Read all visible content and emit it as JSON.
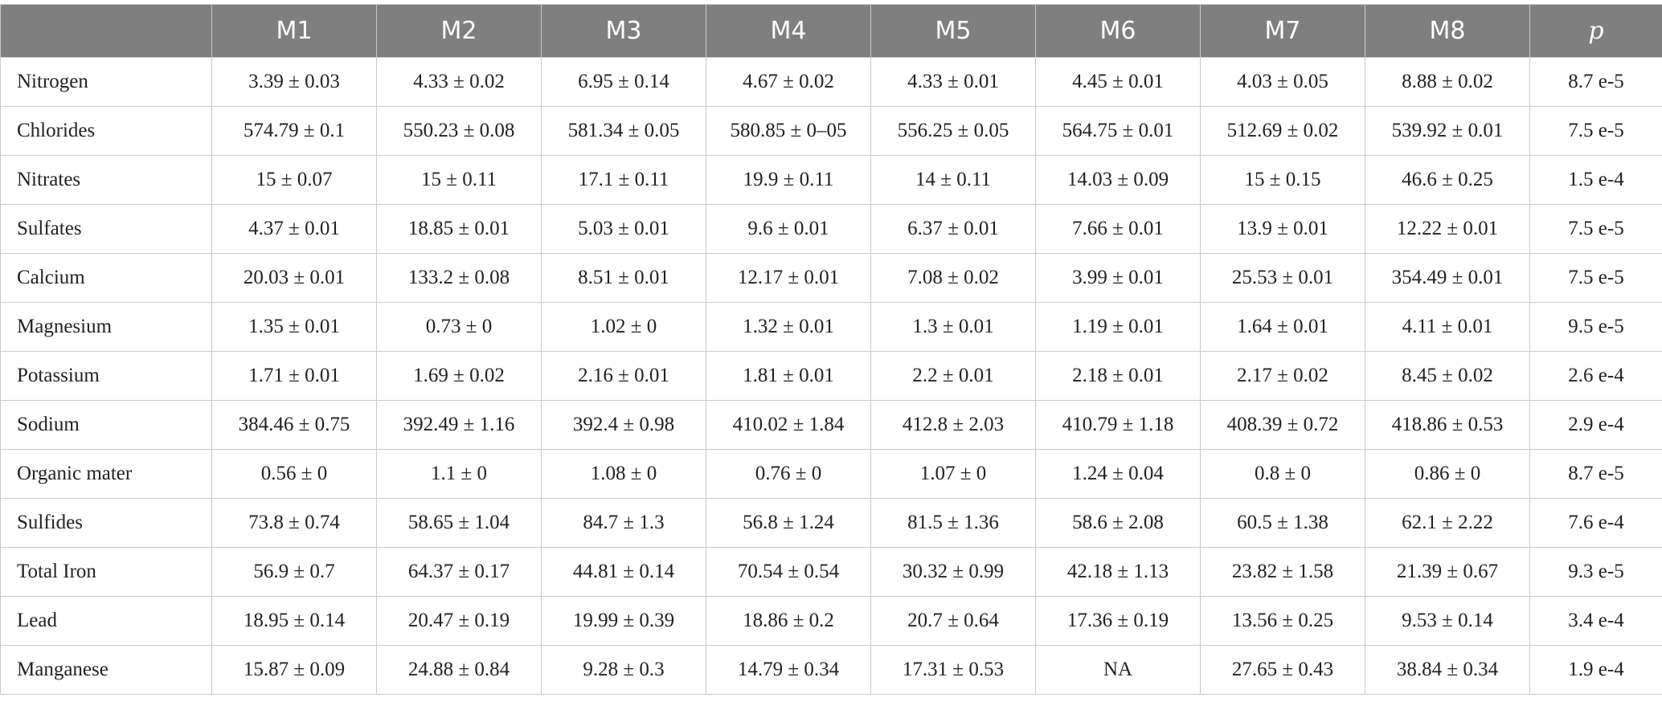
{
  "table": {
    "columns": [
      "",
      "M1",
      "M2",
      "M3",
      "M4",
      "M5",
      "M6",
      "M7",
      "M8",
      "p"
    ],
    "rows": [
      {
        "label": "Nitrogen",
        "cells": [
          "3.39 ± 0.03",
          "4.33 ± 0.02",
          "6.95 ± 0.14",
          "4.67 ± 0.02",
          "4.33 ± 0.01",
          "4.45 ± 0.01",
          "4.03 ± 0.05",
          "8.88 ± 0.02",
          "8.7 e-5"
        ]
      },
      {
        "label": "Chlorides",
        "cells": [
          "574.79 ± 0.1",
          "550.23 ± 0.08",
          "581.34 ± 0.05",
          "580.85 ± 0–05",
          "556.25 ± 0.05",
          "564.75 ± 0.01",
          "512.69 ± 0.02",
          "539.92 ± 0.01",
          "7.5 e-5"
        ]
      },
      {
        "label": "Nitrates",
        "cells": [
          "15 ± 0.07",
          "15 ± 0.11",
          "17.1 ± 0.11",
          "19.9 ± 0.11",
          "14 ± 0.11",
          "14.03 ± 0.09",
          "15 ± 0.15",
          "46.6 ± 0.25",
          "1.5 e-4"
        ]
      },
      {
        "label": "Sulfates",
        "cells": [
          "4.37 ± 0.01",
          "18.85 ± 0.01",
          "5.03 ± 0.01",
          "9.6 ± 0.01",
          "6.37 ± 0.01",
          "7.66 ± 0.01",
          "13.9 ± 0.01",
          "12.22 ± 0.01",
          "7.5 e-5"
        ]
      },
      {
        "label": "Calcium",
        "cells": [
          "20.03 ± 0.01",
          "133.2 ± 0.08",
          "8.51 ± 0.01",
          "12.17 ± 0.01",
          "7.08 ± 0.02",
          "3.99 ± 0.01",
          "25.53 ± 0.01",
          "354.49 ± 0.01",
          "7.5 e-5"
        ]
      },
      {
        "label": "Magnesium",
        "cells": [
          "1.35 ± 0.01",
          "0.73 ± 0",
          "1.02 ± 0",
          "1.32 ± 0.01",
          "1.3 ± 0.01",
          "1.19 ± 0.01",
          "1.64 ± 0.01",
          "4.11 ± 0.01",
          "9.5 e-5"
        ]
      },
      {
        "label": "Potassium",
        "cells": [
          "1.71 ± 0.01",
          "1.69 ± 0.02",
          "2.16 ± 0.01",
          "1.81 ± 0.01",
          "2.2 ± 0.01",
          "2.18 ± 0.01",
          "2.17 ± 0.02",
          "8.45 ± 0.02",
          "2.6 e-4"
        ]
      },
      {
        "label": "Sodium",
        "cells": [
          "384.46 ± 0.75",
          "392.49 ± 1.16",
          "392.4 ± 0.98",
          "410.02 ± 1.84",
          "412.8 ± 2.03",
          "410.79 ± 1.18",
          "408.39 ± 0.72",
          "418.86 ± 0.53",
          "2.9 e-4"
        ]
      },
      {
        "label": "Organic mater",
        "cells": [
          "0.56 ± 0",
          "1.1 ± 0",
          "1.08 ± 0",
          "0.76 ± 0",
          "1.07 ± 0",
          "1.24 ± 0.04",
          "0.8 ± 0",
          "0.86 ± 0",
          "8.7 e-5"
        ]
      },
      {
        "label": "Sulfides",
        "cells": [
          "73.8 ± 0.74",
          "58.65 ± 1.04",
          "84.7 ± 1.3",
          "56.8 ± 1.24",
          "81.5 ± 1.36",
          "58.6 ± 2.08",
          "60.5 ± 1.38",
          "62.1 ± 2.22",
          "7.6 e-4"
        ]
      },
      {
        "label": "Total Iron",
        "cells": [
          "56.9 ± 0.7",
          "64.37 ± 0.17",
          "44.81 ± 0.14",
          "70.54 ± 0.54",
          "30.32 ± 0.99",
          "42.18 ± 1.13",
          "23.82 ± 1.58",
          "21.39 ± 0.67",
          "9.3 e-5"
        ]
      },
      {
        "label": "Lead",
        "cells": [
          "18.95 ± 0.14",
          "20.47 ± 0.19",
          "19.99 ± 0.39",
          "18.86 ± 0.2",
          "20.7 ± 0.64",
          "17.36 ± 0.19",
          "13.56 ± 0.25",
          "9.53 ± 0.14",
          "3.4 e-4"
        ]
      },
      {
        "label": "Manganese",
        "cells": [
          "15.87 ± 0.09",
          "24.88 ± 0.84",
          "9.28 ± 0.3",
          "14.79 ± 0.34",
          "17.31 ± 0.53",
          "NA",
          "27.65 ± 0.43",
          "38.84 ± 0.34",
          "1.9 e-4"
        ]
      }
    ]
  }
}
